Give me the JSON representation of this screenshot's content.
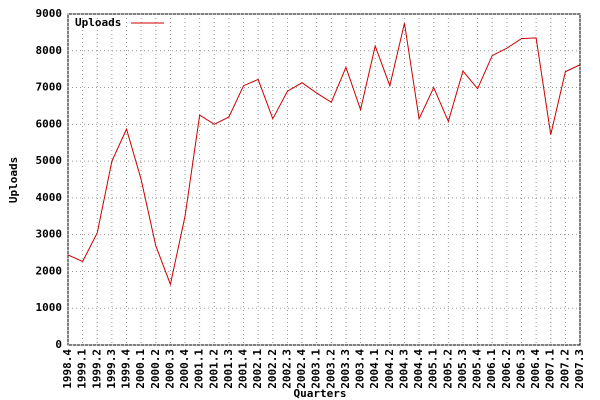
{
  "chart_data": {
    "type": "line",
    "xlabel": "Quarters",
    "ylabel": "Uploads",
    "categories": [
      "1998.4",
      "1999.1",
      "1999.2",
      "1999.3",
      "1999.4",
      "2000.1",
      "2000.2",
      "2000.3",
      "2000.4",
      "2001.1",
      "2001.2",
      "2001.3",
      "2001.4",
      "2002.1",
      "2002.2",
      "2002.3",
      "2002.4",
      "2003.1",
      "2003.2",
      "2003.3",
      "2003.4",
      "2004.1",
      "2004.2",
      "2004.3",
      "2004.4",
      "2005.1",
      "2005.2",
      "2005.3",
      "2005.4",
      "2006.1",
      "2006.2",
      "2006.3",
      "2006.4",
      "2007.1",
      "2007.2",
      "2007.3"
    ],
    "series": [
      {
        "name": "Uploads",
        "color": "#cc0000",
        "values": [
          2450,
          2270,
          3050,
          5000,
          5870,
          4500,
          2700,
          1650,
          3500,
          6250,
          6000,
          6200,
          7050,
          7220,
          6150,
          6900,
          7130,
          6850,
          6600,
          7550,
          6400,
          8130,
          7050,
          8750,
          6150,
          7000,
          6080,
          7450,
          6970,
          7870,
          8070,
          8330,
          8350,
          5720,
          7430,
          7620
        ]
      }
    ],
    "ylim": [
      0,
      9000
    ],
    "yticks": [
      0,
      1000,
      2000,
      3000,
      4000,
      5000,
      6000,
      7000,
      8000,
      9000
    ],
    "grid": true,
    "legend": "top-left"
  }
}
